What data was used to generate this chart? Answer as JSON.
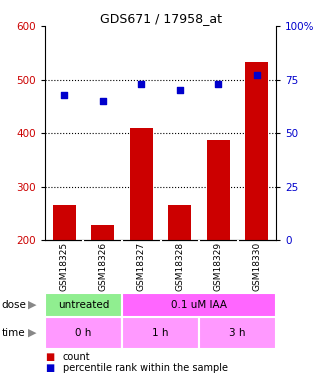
{
  "title": "GDS671 / 17958_at",
  "samples": [
    "GSM18325",
    "GSM18326",
    "GSM18327",
    "GSM18328",
    "GSM18329",
    "GSM18330"
  ],
  "bar_values": [
    265,
    228,
    410,
    265,
    388,
    533
  ],
  "dot_values": [
    68,
    65,
    73,
    70,
    73,
    77
  ],
  "ylim_left": [
    200,
    600
  ],
  "ylim_right": [
    0,
    100
  ],
  "yticks_left": [
    200,
    300,
    400,
    500,
    600
  ],
  "ytick_labels_left": [
    "200",
    "300",
    "400",
    "500",
    "600"
  ],
  "yticks_right": [
    0,
    25,
    50,
    75,
    100
  ],
  "ytick_labels_right": [
    "0",
    "25",
    "50",
    "75",
    "100%"
  ],
  "bar_color": "#cc0000",
  "dot_color": "#0000cc",
  "grid_color": "#000000",
  "dose_colors": [
    "#90ee90",
    "#ff66ff"
  ],
  "time_color": "#ff99ff",
  "legend_items": [
    "count",
    "percentile rank within the sample"
  ],
  "legend_colors": [
    "#cc0000",
    "#0000cc"
  ],
  "bg_color": "#ffffff",
  "label_color_left": "#cc0000",
  "label_color_right": "#0000cc",
  "sample_box_color": "#cccccc",
  "sample_box_border": "#ffffff"
}
